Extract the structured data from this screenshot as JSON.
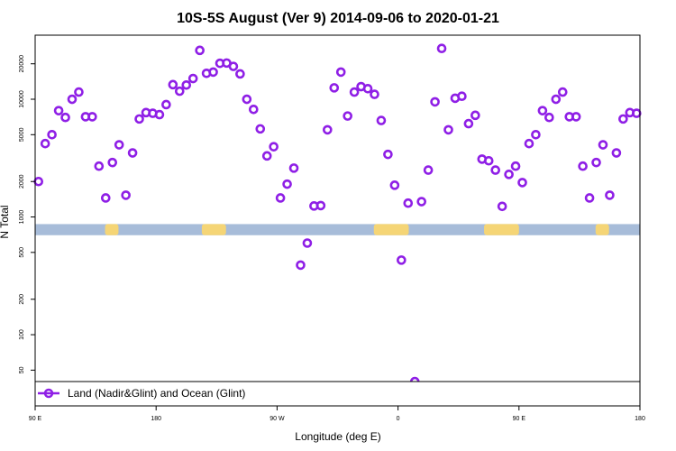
{
  "chart_data": {
    "type": "scatter",
    "title": "10S-5S August (Ver 9)   2014-09-06 to 2020-01-21",
    "xlabel": "Longitude (deg E)",
    "ylabel": "N Total",
    "x_axis": {
      "range_deg_east": [
        90,
        450
      ],
      "ticks": [
        {
          "value": 90,
          "label": "90 E"
        },
        {
          "value": 180,
          "label": "180"
        },
        {
          "value": 270,
          "label": "90 W"
        },
        {
          "value": 360,
          "label": "0"
        },
        {
          "value": 450,
          "label": "90 E"
        },
        {
          "value": 540,
          "label": "180"
        }
      ],
      "display_range": [
        90,
        540
      ]
    },
    "y_axis": {
      "scale": "log",
      "range": [
        40,
        35000
      ],
      "ticks": [
        {
          "value": 50,
          "label": "50"
        },
        {
          "value": 100,
          "label": "100"
        },
        {
          "value": 200,
          "label": "200"
        },
        {
          "value": 500,
          "label": "500"
        },
        {
          "value": 1000,
          "label": "1000"
        },
        {
          "value": 2000,
          "label": "2000"
        },
        {
          "value": 5000,
          "label": "5000"
        },
        {
          "value": 10000,
          "label": "10000"
        },
        {
          "value": 20000,
          "label": "20000"
        }
      ]
    },
    "map_band": {
      "y_low": 700,
      "y_high": 870,
      "ocean_color": "#a7bcd9",
      "land_color": "#f5d576",
      "land_segments": [
        [
          142,
          152
        ],
        [
          214,
          232
        ],
        [
          342,
          368
        ],
        [
          424,
          450
        ],
        [
          507,
          517
        ]
      ]
    },
    "series": [
      {
        "name": "Land (Nadir&Glint) and Ocean (Glint)",
        "color": "#8f1fe6",
        "marker": "open-circle",
        "points": [
          [
            92.5,
            2000
          ],
          [
            97.5,
            4200
          ],
          [
            102.5,
            5000
          ],
          [
            107.5,
            8000
          ],
          [
            112.5,
            7000
          ],
          [
            117.5,
            10000
          ],
          [
            122.5,
            11500
          ],
          [
            127.5,
            7100
          ],
          [
            132.5,
            7100
          ],
          [
            137.5,
            2700
          ],
          [
            142.5,
            1450
          ],
          [
            147.5,
            2900
          ],
          [
            152.5,
            4100
          ],
          [
            157.5,
            1530
          ],
          [
            162.5,
            3500
          ],
          [
            167.5,
            6800
          ],
          [
            172.5,
            7700
          ],
          [
            177.5,
            7600
          ],
          [
            182.5,
            7400
          ],
          [
            187.5,
            9000
          ],
          [
            192.5,
            13300
          ],
          [
            197.5,
            11700
          ],
          [
            202.5,
            13200
          ],
          [
            207.5,
            15000
          ],
          [
            212.5,
            26000
          ],
          [
            217.5,
            16600
          ],
          [
            222.5,
            17000
          ],
          [
            227.5,
            20200
          ],
          [
            232.5,
            20300
          ],
          [
            237.5,
            19000
          ],
          [
            242.5,
            16400
          ],
          [
            247.5,
            10000
          ],
          [
            252.5,
            8200
          ],
          [
            257.5,
            5600
          ],
          [
            262.5,
            3300
          ],
          [
            267.5,
            3950
          ],
          [
            272.5,
            1450
          ],
          [
            277.5,
            1900
          ],
          [
            282.5,
            2600
          ],
          [
            287.5,
            390
          ],
          [
            292.5,
            600
          ],
          [
            297.5,
            1240
          ],
          [
            302.5,
            1250
          ],
          [
            307.5,
            5500
          ],
          [
            312.5,
            12500
          ],
          [
            317.5,
            17000
          ],
          [
            322.5,
            7200
          ],
          [
            327.5,
            11500
          ],
          [
            332.5,
            12800
          ],
          [
            337.5,
            12300
          ],
          [
            342.5,
            11000
          ],
          [
            347.5,
            6600
          ],
          [
            352.5,
            3400
          ],
          [
            357.5,
            1860
          ],
          [
            362.5,
            430
          ],
          [
            367.5,
            1310
          ],
          [
            372.5,
            40
          ],
          [
            377.5,
            1350
          ],
          [
            382.5,
            2500
          ],
          [
            387.5,
            9500
          ],
          [
            392.5,
            27000
          ],
          [
            397.5,
            5500
          ],
          [
            402.5,
            10200
          ],
          [
            407.5,
            10600
          ],
          [
            412.5,
            6200
          ],
          [
            417.5,
            7300
          ],
          [
            422.5,
            3100
          ],
          [
            427.5,
            3000
          ],
          [
            432.5,
            2500
          ],
          [
            437.5,
            1230
          ],
          [
            442.5,
            2300
          ],
          [
            447.5,
            2700
          ],
          [
            452.5,
            1960
          ],
          [
            457.5,
            4200
          ],
          [
            462.5,
            5000
          ],
          [
            467.5,
            8000
          ],
          [
            472.5,
            7000
          ],
          [
            477.5,
            10000
          ],
          [
            482.5,
            11500
          ],
          [
            487.5,
            7100
          ],
          [
            492.5,
            7100
          ],
          [
            497.5,
            2700
          ],
          [
            502.5,
            1450
          ],
          [
            507.5,
            2900
          ],
          [
            512.5,
            4100
          ],
          [
            517.5,
            1530
          ],
          [
            522.5,
            3500
          ],
          [
            527.5,
            6800
          ],
          [
            532.5,
            7700
          ],
          [
            537.5,
            7600
          ]
        ]
      }
    ],
    "legend": {
      "position": "bottom-left",
      "entries": [
        "Land (Nadir&Glint) and Ocean (Glint)"
      ]
    },
    "grid": false
  }
}
